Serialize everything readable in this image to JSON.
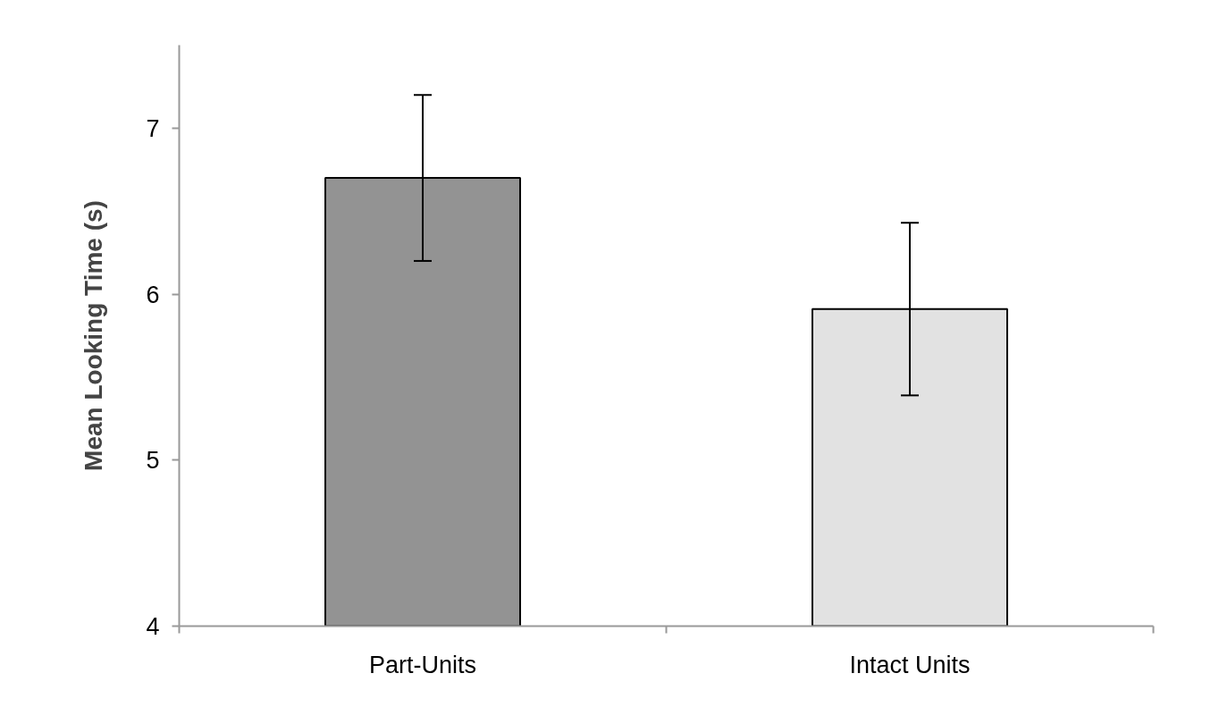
{
  "chart_data": {
    "type": "bar",
    "ylabel": "Mean Looking Time (s)",
    "categories": [
      "Part-Units",
      "Intact Units"
    ],
    "values": [
      6.7,
      5.91
    ],
    "colors": [
      "#939393",
      "#e2e2e2"
    ],
    "errors": [
      0.5,
      0.52
    ],
    "ylim": [
      4,
      7.5
    ],
    "yticks": [
      4,
      5,
      6,
      7
    ],
    "grid": false
  }
}
